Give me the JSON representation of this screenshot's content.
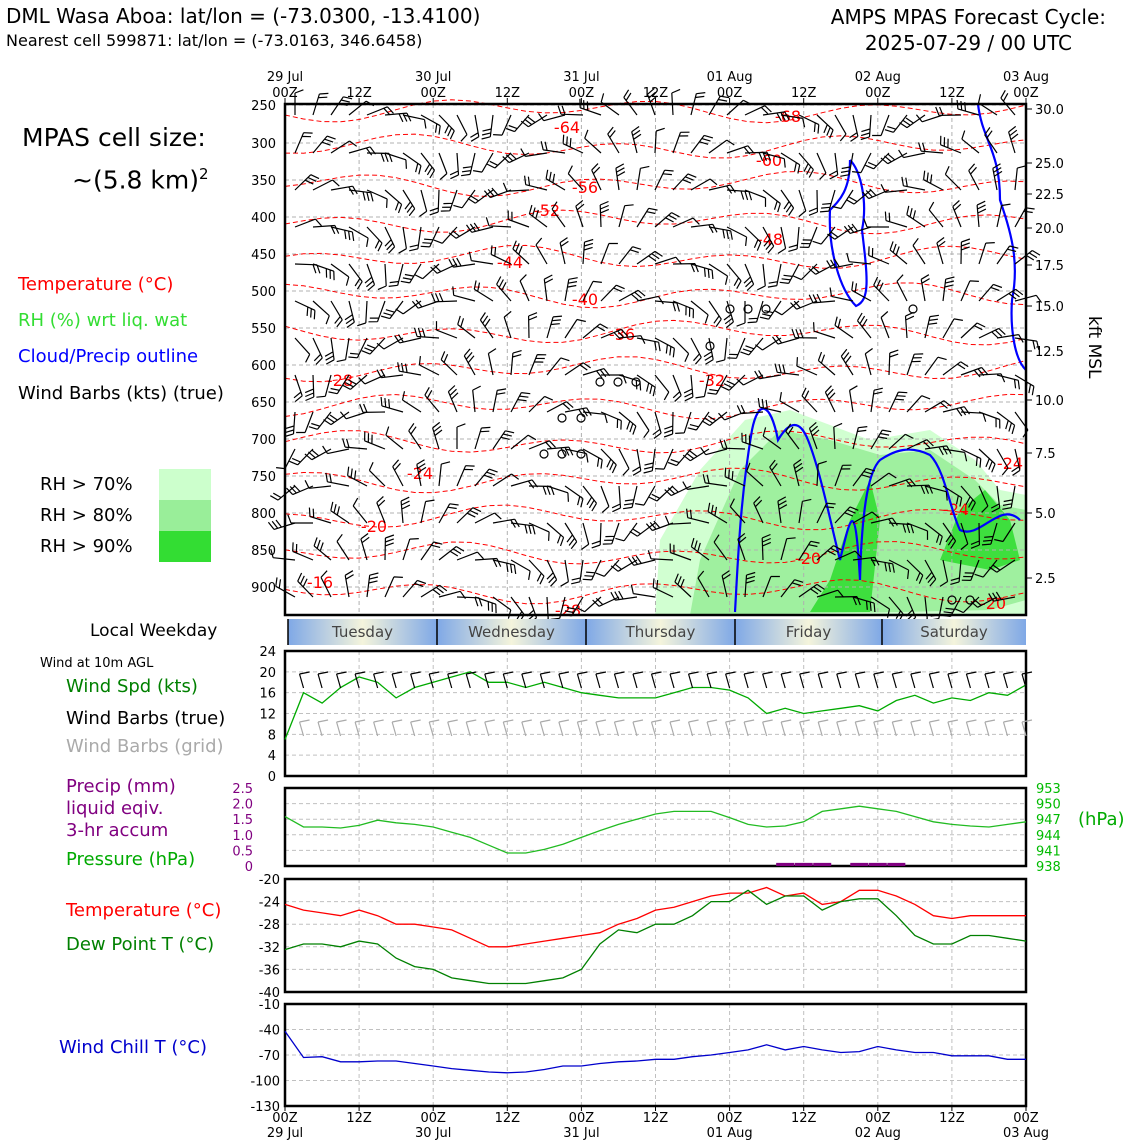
{
  "header": {
    "title_left": "DML Wasa Aboa: lat/lon = (-73.0300, -13.4100)",
    "subtitle_left": "Nearest cell 599871: lat/lon = (-73.0163, 346.6458)",
    "title_right_line1": "AMPS MPAS Forecast Cycle:",
    "title_right_line2": "2025-07-29 / 00 UTC"
  },
  "cell_size": {
    "line1": "MPAS cell size:",
    "line2": "~(5.8 km)",
    "sup": "2"
  },
  "legend": {
    "temperature": "Temperature (°C)",
    "rh": "RH (%) wrt liq. wat",
    "cloud": "Cloud/Precip outline",
    "wind": "Wind Barbs (kts) (true)",
    "rh70": "RH > 70%",
    "rh80": "RH > 80%",
    "rh90": "RH > 90%"
  },
  "colors": {
    "temp": "#ff0000",
    "rh": "#33dd33",
    "cloud": "#0000ff",
    "precip": "#800080",
    "pressure": "#00aa00",
    "dewpoint": "#008000",
    "windchill": "#0000cc",
    "rh70": "#ccffcc",
    "rh80": "#99ee99",
    "rh90": "#33dd33",
    "grid_barb": "#aaaaaa"
  },
  "weekday_label": "Local Weekday",
  "weekdays": [
    "Tuesday",
    "Wednesday",
    "Thursday",
    "Friday",
    "Saturday"
  ],
  "time_axis": {
    "top_dates": [
      "29 Jul",
      "30 Jul",
      "31 Jul",
      "01 Aug",
      "02 Aug",
      "03 Aug"
    ],
    "ticks": [
      "00Z",
      "12Z",
      "00Z",
      "12Z",
      "00Z",
      "12Z",
      "00Z",
      "12Z",
      "00Z",
      "12Z",
      "00Z"
    ]
  },
  "pressure_axis": [
    "250",
    "300",
    "350",
    "400",
    "450",
    "500",
    "550",
    "600",
    "650",
    "700",
    "750",
    "800",
    "850",
    "900"
  ],
  "kft_axis": {
    "label": "kft MSL",
    "ticks": [
      "30.0",
      "25.0",
      "22.5",
      "20.0",
      "17.5",
      "15.0",
      "12.5",
      "10.0",
      "7.5",
      "5.0",
      "2.5"
    ]
  },
  "temp_contour_labels": [
    "-68",
    "-64",
    "-60",
    "-56",
    "-52",
    "-48",
    "-44",
    "-40",
    "-36",
    "-32",
    "-28",
    "-24",
    "-24",
    "-20",
    "-20",
    "-20",
    "-16",
    "-28",
    "-24"
  ],
  "panels": {
    "wind": {
      "title": "Wind at 10m AGL",
      "labels": [
        "Wind Spd (kts)",
        "Wind Barbs (true)",
        "Wind Barbs (grid)"
      ],
      "yticks": [
        "24",
        "20",
        "16",
        "12",
        "8",
        "4",
        "0"
      ]
    },
    "precip": {
      "labels": [
        "Precip (mm)",
        "liquid eqiv.",
        "3-hr accum",
        "Pressure (hPa)"
      ],
      "left_ticks": [
        "2.5",
        "2.0",
        "1.5",
        "1.0",
        "0.5",
        "0"
      ],
      "right_ticks": [
        "953",
        "950",
        "947",
        "944",
        "941",
        "938"
      ],
      "right_unit": "(hPa)"
    },
    "temp": {
      "labels": [
        "Temperature (°C)",
        "Dew Point T (°C)"
      ],
      "yticks": [
        "-20",
        "-24",
        "-28",
        "-32",
        "-36",
        "-40"
      ]
    },
    "windchill": {
      "labels": [
        "Wind Chill T (°C)"
      ],
      "yticks": [
        "-10",
        "-40",
        "-70",
        "-100",
        "-130"
      ]
    }
  },
  "chart_data": [
    {
      "type": "line",
      "title": "Wind at 10m AGL",
      "x_hours": [
        0,
        3,
        6,
        9,
        12,
        15,
        18,
        21,
        24,
        27,
        30,
        33,
        36,
        39,
        42,
        45,
        48,
        51,
        54,
        57,
        60,
        63,
        66,
        69,
        72,
        75,
        78,
        81,
        84,
        87,
        90,
        93,
        96,
        99,
        102,
        105,
        108,
        111,
        114,
        117,
        120
      ],
      "ylim": [
        0,
        24
      ],
      "series": [
        {
          "name": "Wind Spd (kts)",
          "values": [
            7,
            16,
            14,
            17,
            19,
            18,
            15,
            17,
            18,
            19,
            20,
            18,
            18,
            17,
            18,
            17,
            16,
            15.5,
            15,
            15,
            15,
            16,
            17,
            17,
            16.5,
            15,
            12,
            13,
            12,
            12.5,
            13,
            13.5,
            12.5,
            14.5,
            15.5,
            14,
            15,
            14.5,
            16,
            15.5,
            17.5
          ]
        }
      ]
    },
    {
      "type": "line",
      "title": "Precip / Pressure",
      "x_hours": [
        0,
        3,
        6,
        9,
        12,
        15,
        18,
        21,
        24,
        27,
        30,
        33,
        36,
        39,
        42,
        45,
        48,
        51,
        54,
        57,
        60,
        63,
        66,
        69,
        72,
        75,
        78,
        81,
        84,
        87,
        90,
        93,
        96,
        99,
        102,
        105,
        108,
        111,
        114,
        117,
        120
      ],
      "series": [
        {
          "name": "Pressure (hPa)",
          "ylim": [
            938,
            953
          ],
          "values": [
            947.5,
            945.5,
            945.5,
            945.3,
            945.8,
            946.8,
            946.3,
            946,
            945.5,
            944.5,
            943.5,
            942,
            940.5,
            940.5,
            941.2,
            942.2,
            943.5,
            944.8,
            946,
            947,
            948,
            948.5,
            948.5,
            948.5,
            947.3,
            946,
            945.5,
            945.7,
            946.5,
            948.5,
            949,
            949.5,
            949,
            948.5,
            947.5,
            946.5,
            946,
            945.7,
            945.5,
            946,
            946.5
          ]
        },
        {
          "name": "Precip (mm)",
          "ylim": [
            0,
            2.5
          ],
          "values": [
            0,
            0,
            0,
            0,
            0,
            0,
            0,
            0,
            0,
            0,
            0,
            0,
            0,
            0,
            0,
            0,
            0,
            0,
            0,
            0,
            0,
            0,
            0,
            0,
            0,
            0,
            0,
            0.1,
            0.1,
            0.1,
            0,
            0.1,
            0.1,
            0.1,
            0,
            0,
            0,
            0,
            0,
            0,
            0
          ]
        }
      ]
    },
    {
      "type": "line",
      "title": "Temperature / Dew Point",
      "x_hours": [
        0,
        3,
        6,
        9,
        12,
        15,
        18,
        21,
        24,
        27,
        30,
        33,
        36,
        39,
        42,
        45,
        48,
        51,
        54,
        57,
        60,
        63,
        66,
        69,
        72,
        75,
        78,
        81,
        84,
        87,
        90,
        93,
        96,
        99,
        102,
        105,
        108,
        111,
        114,
        117,
        120
      ],
      "ylim": [
        -40,
        -20
      ],
      "series": [
        {
          "name": "Temperature (°C)",
          "values": [
            -24.5,
            -25.5,
            -26,
            -26.5,
            -25.5,
            -26.5,
            -28,
            -28,
            -28.5,
            -29,
            -30.5,
            -32,
            -32,
            -31.5,
            -31,
            -30.5,
            -30,
            -29.5,
            -28,
            -27,
            -25.5,
            -25,
            -24,
            -23,
            -22.5,
            -22.5,
            -21.5,
            -23,
            -22.5,
            -24.5,
            -24,
            -22,
            -22,
            -23,
            -24.5,
            -26.5,
            -27,
            -26.5,
            -26.5,
            -26.5,
            -26.5
          ]
        },
        {
          "name": "Dew Point T (°C)",
          "values": [
            -32.5,
            -31.5,
            -31.5,
            -32,
            -31,
            -31.5,
            -34,
            -35.5,
            -36,
            -37.5,
            -38,
            -38.5,
            -38.5,
            -38.5,
            -38,
            -37.5,
            -36,
            -31.5,
            -29,
            -29.5,
            -28,
            -28,
            -26.5,
            -24,
            -24,
            -22,
            -24.5,
            -23,
            -23,
            -25.5,
            -24,
            -23.5,
            -23.5,
            -26.5,
            -30,
            -31.5,
            -31.5,
            -30,
            -30,
            -30.5,
            -31
          ]
        }
      ]
    },
    {
      "type": "line",
      "title": "Wind Chill",
      "x_hours": [
        0,
        3,
        6,
        9,
        12,
        15,
        18,
        21,
        24,
        27,
        30,
        33,
        36,
        39,
        42,
        45,
        48,
        51,
        54,
        57,
        60,
        63,
        66,
        69,
        72,
        75,
        78,
        81,
        84,
        87,
        90,
        93,
        96,
        99,
        102,
        105,
        108,
        111,
        114,
        117,
        120
      ],
      "ylim": [
        -130,
        -10
      ],
      "series": [
        {
          "name": "Wind Chill T (°C)",
          "values": [
            -42,
            -73,
            -72,
            -78,
            -78,
            -77,
            -77,
            -80,
            -83,
            -86,
            -88,
            -90,
            -91,
            -90,
            -87,
            -83,
            -83,
            -80,
            -78,
            -77,
            -75,
            -75,
            -72,
            -70,
            -67,
            -64,
            -58,
            -64,
            -60,
            -64,
            -67,
            -66,
            -60,
            -64,
            -67,
            -67,
            -71,
            -71,
            -71,
            -75,
            -75
          ]
        }
      ]
    }
  ]
}
